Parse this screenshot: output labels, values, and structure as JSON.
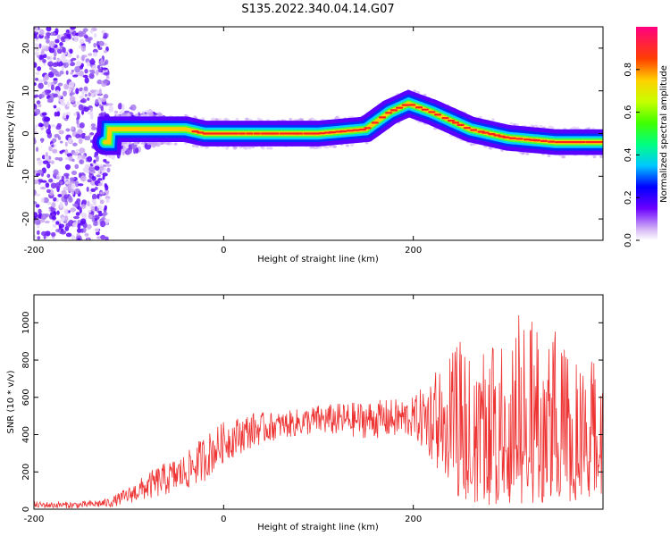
{
  "title": "S135.2022.340.04.14.G07",
  "chart_data": [
    {
      "type": "heatmap",
      "name": "spectrogram",
      "xlabel": "Height of straight line (km)",
      "ylabel": "Frequency (Hz)",
      "xlim": [
        -200,
        400
      ],
      "ylim": [
        -25,
        25
      ],
      "x_ticks": [
        -200,
        0,
        200
      ],
      "y_ticks": [
        -20,
        -10,
        0,
        10,
        20
      ],
      "colorbar": {
        "label": "Normalized spectral amplitude",
        "range": [
          0.0,
          1.0
        ],
        "ticks": [
          0.0,
          0.2,
          0.4,
          0.6,
          0.8
        ],
        "colormap": "rainbow"
      },
      "ridge": {
        "description_values": [
          {
            "x": -120,
            "y": 1
          },
          {
            "x": -80,
            "y": 1
          },
          {
            "x": -40,
            "y": 1
          },
          {
            "x": -20,
            "y": 0
          },
          {
            "x": 0,
            "y": 0
          },
          {
            "x": 50,
            "y": 0
          },
          {
            "x": 100,
            "y": 0
          },
          {
            "x": 150,
            "y": 1
          },
          {
            "x": 175,
            "y": 5
          },
          {
            "x": 195,
            "y": 7
          },
          {
            "x": 220,
            "y": 5
          },
          {
            "x": 260,
            "y": 1
          },
          {
            "x": 300,
            "y": -1
          },
          {
            "x": 350,
            "y": -2
          },
          {
            "x": 400,
            "y": -2
          }
        ]
      }
    },
    {
      "type": "line",
      "name": "snr",
      "xlabel": "Height of straight line (km)",
      "ylabel": "SNR (10 * v/v)",
      "xlim": [
        -200,
        400
      ],
      "ylim": [
        0,
        1150
      ],
      "x_ticks": [
        -200,
        0,
        200
      ],
      "y_ticks": [
        0,
        200,
        400,
        600,
        800,
        1000
      ],
      "line_color": "#ee3333",
      "envelope": [
        {
          "x": -200,
          "lo": 5,
          "hi": 40
        },
        {
          "x": -150,
          "lo": 5,
          "hi": 40
        },
        {
          "x": -120,
          "lo": 10,
          "hi": 60
        },
        {
          "x": -100,
          "lo": 30,
          "hi": 120
        },
        {
          "x": -70,
          "lo": 60,
          "hi": 230
        },
        {
          "x": -40,
          "lo": 100,
          "hi": 300
        },
        {
          "x": -20,
          "lo": 150,
          "hi": 400
        },
        {
          "x": 0,
          "lo": 250,
          "hi": 470
        },
        {
          "x": 30,
          "lo": 330,
          "hi": 520
        },
        {
          "x": 60,
          "lo": 380,
          "hi": 520
        },
        {
          "x": 100,
          "lo": 400,
          "hi": 560
        },
        {
          "x": 150,
          "lo": 380,
          "hi": 580
        },
        {
          "x": 200,
          "lo": 380,
          "hi": 600
        },
        {
          "x": 220,
          "lo": 250,
          "hi": 720
        },
        {
          "x": 250,
          "lo": 50,
          "hi": 900
        },
        {
          "x": 280,
          "lo": 20,
          "hi": 850
        },
        {
          "x": 310,
          "lo": 20,
          "hi": 1050
        },
        {
          "x": 350,
          "lo": 30,
          "hi": 1000
        },
        {
          "x": 380,
          "lo": 50,
          "hi": 800
        },
        {
          "x": 400,
          "lo": 50,
          "hi": 800
        }
      ]
    }
  ]
}
